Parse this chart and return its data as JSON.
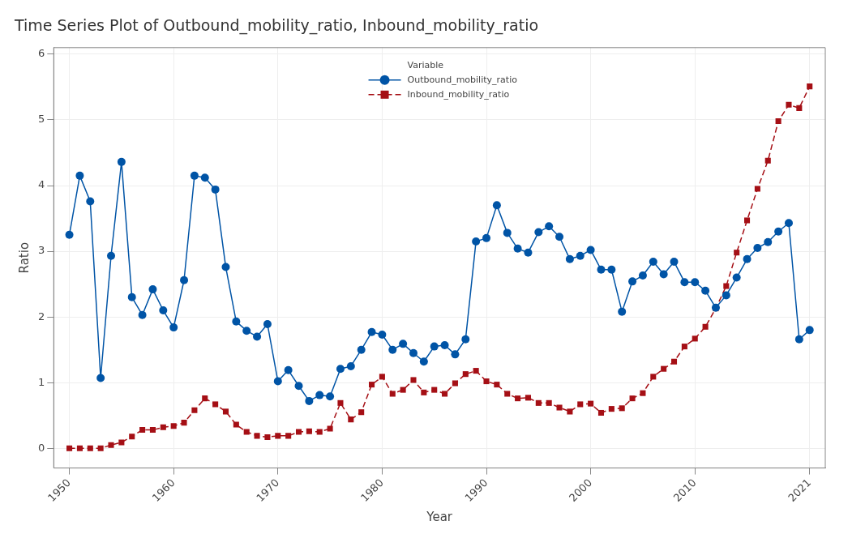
{
  "chart_data": {
    "type": "line",
    "title": "Time Series Plot of Outbound_mobility_ratio, Inbound_mobility_ratio",
    "xlabel": "Year",
    "ylabel": "Ratio",
    "legend_title": "Variable",
    "legend": "top",
    "grid": true,
    "x": [
      1950,
      1951,
      1952,
      1953,
      1954,
      1955,
      1956,
      1957,
      1958,
      1959,
      1960,
      1961,
      1962,
      1963,
      1964,
      1965,
      1966,
      1967,
      1968,
      1969,
      1970,
      1971,
      1972,
      1973,
      1974,
      1975,
      1976,
      1977,
      1978,
      1979,
      1980,
      1981,
      1982,
      1983,
      1984,
      1985,
      1986,
      1987,
      1988,
      1989,
      1990,
      1991,
      1992,
      1993,
      1994,
      1995,
      1996,
      1997,
      1998,
      1999,
      2000,
      2001,
      2002,
      2003,
      2004,
      2005,
      2006,
      2007,
      2008,
      2009,
      2010,
      2011,
      2012,
      2013,
      2014,
      2015,
      2016,
      2017,
      2018,
      2019,
      2020,
      2021
    ],
    "xlim": [
      1948.5,
      2022.5
    ],
    "xticks": [
      1950,
      1960,
      1970,
      1980,
      1990,
      2000,
      2010,
      2021
    ],
    "ylim": [
      -0.3,
      6.1
    ],
    "yticks": [
      0,
      1,
      2,
      3,
      4,
      5,
      6
    ],
    "series": [
      {
        "name": "Outbound_mobility_ratio",
        "color": "#0054a6",
        "marker": "circle",
        "line_style": "solid",
        "values": [
          3.25,
          4.15,
          3.76,
          1.07,
          2.93,
          4.36,
          2.3,
          2.03,
          2.42,
          2.1,
          1.84,
          2.56,
          4.15,
          4.12,
          3.94,
          2.76,
          1.93,
          1.79,
          1.7,
          1.89,
          1.02,
          1.19,
          0.95,
          0.72,
          0.81,
          0.79,
          1.21,
          1.25,
          1.5,
          1.77,
          1.73,
          1.5,
          1.59,
          1.45,
          1.32,
          1.55,
          1.57,
          1.43,
          1.66,
          3.15,
          3.2,
          3.7,
          3.28,
          3.04,
          2.98,
          3.29,
          3.38,
          3.22,
          2.88,
          2.93,
          3.02,
          2.72,
          2.72,
          2.08,
          2.54,
          2.63,
          2.84,
          2.65,
          2.84,
          2.53,
          2.53,
          2.4,
          2.14,
          2.33,
          2.6,
          2.88,
          3.05,
          3.14,
          3.3,
          3.43,
          1.66,
          1.8
        ]
      },
      {
        "name": "Inbound_mobility_ratio",
        "color": "#a50f15",
        "marker": "square",
        "line_style": "dashed",
        "values": [
          0,
          0,
          0,
          0,
          0.05,
          0.09,
          0.18,
          0.28,
          0.28,
          0.32,
          0.34,
          0.39,
          0.58,
          0.76,
          0.67,
          0.56,
          0.36,
          0.25,
          0.19,
          0.17,
          0.19,
          0.19,
          0.25,
          0.26,
          0.25,
          0.3,
          0.69,
          0.44,
          0.55,
          0.97,
          1.09,
          0.83,
          0.89,
          1.04,
          0.85,
          0.89,
          0.83,
          0.99,
          1.13,
          1.18,
          1.02,
          0.97,
          0.83,
          0.76,
          0.77,
          0.69,
          0.69,
          0.62,
          0.56,
          0.67,
          0.68,
          0.54,
          0.6,
          0.61,
          0.76,
          0.84,
          1.09,
          1.21,
          1.32,
          1.55,
          1.67,
          1.85,
          2.13,
          2.47,
          2.98,
          3.47,
          3.95,
          4.38,
          4.98,
          5.23,
          5.18,
          5.51
        ]
      }
    ]
  }
}
